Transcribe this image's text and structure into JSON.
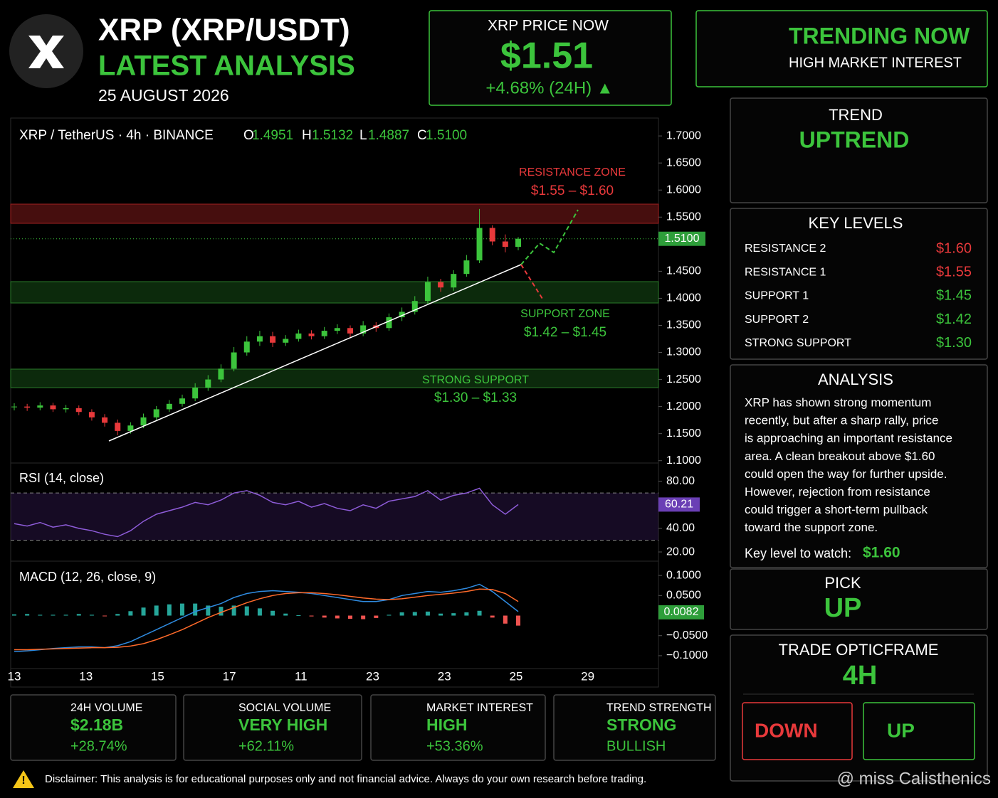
{
  "header": {
    "title": "XRP (XRP/USDT)",
    "subtitle": "LATEST ANALYSIS",
    "date": "25 AUGUST 2026"
  },
  "price": {
    "label": "XRP PRICE NOW",
    "value": "$1.51",
    "change": "+4.68% (24H) ▲"
  },
  "trending": {
    "title": "TRENDING NOW",
    "subtitle": "HIGH MARKET INTEREST"
  },
  "chart_header": {
    "symbol": "XRP / TetherUS · 4h · BINANCE",
    "ohlc": [
      [
        "O",
        "1.4951"
      ],
      [
        "H",
        "1.5132"
      ],
      [
        "L",
        "1.4887"
      ],
      [
        "C",
        "1.5100"
      ]
    ]
  },
  "zones": {
    "resistance": [
      "RESISTANCE ZONE",
      "$1.55 – $1.60"
    ],
    "support": [
      "SUPPORT ZONE",
      "$1.42 – $1.45"
    ],
    "strong": [
      "STRONG SUPPORT",
      "$1.30 – $1.33"
    ]
  },
  "chart_data": {
    "type": "candlestick",
    "x_labels": [
      "13",
      "13",
      "15",
      "17",
      "11",
      "23",
      "23",
      "25",
      "29"
    ],
    "open": [
      1.199,
      1.2,
      1.198,
      1.202,
      1.195,
      1.197,
      1.19,
      1.18,
      1.17,
      1.155,
      1.165,
      1.18,
      1.195,
      1.205,
      1.215,
      1.235,
      1.25,
      1.27,
      1.3,
      1.32,
      1.33,
      1.318,
      1.325,
      1.335,
      1.33,
      1.34,
      1.345,
      1.335,
      1.35,
      1.345,
      1.365,
      1.375,
      1.395,
      1.43,
      1.42,
      1.445,
      1.47,
      1.53,
      1.505,
      1.4951
    ],
    "high": [
      1.206,
      1.205,
      1.208,
      1.207,
      1.203,
      1.202,
      1.195,
      1.186,
      1.176,
      1.171,
      1.187,
      1.201,
      1.212,
      1.222,
      1.243,
      1.258,
      1.278,
      1.31,
      1.33,
      1.34,
      1.338,
      1.332,
      1.342,
      1.341,
      1.347,
      1.352,
      1.35,
      1.358,
      1.356,
      1.372,
      1.383,
      1.404,
      1.44,
      1.436,
      1.452,
      1.48,
      1.565,
      1.535,
      1.518,
      1.5132
    ],
    "low": [
      1.193,
      1.192,
      1.193,
      1.19,
      1.189,
      1.184,
      1.174,
      1.163,
      1.147,
      1.15,
      1.16,
      1.175,
      1.19,
      1.2,
      1.21,
      1.229,
      1.245,
      1.265,
      1.294,
      1.312,
      1.31,
      1.312,
      1.32,
      1.324,
      1.325,
      1.334,
      1.328,
      1.33,
      1.338,
      1.34,
      1.358,
      1.37,
      1.39,
      1.412,
      1.414,
      1.44,
      1.465,
      1.498,
      1.485,
      1.4887
    ],
    "close": [
      1.2,
      1.198,
      1.202,
      1.195,
      1.197,
      1.19,
      1.18,
      1.17,
      1.155,
      1.165,
      1.18,
      1.195,
      1.205,
      1.215,
      1.235,
      1.25,
      1.27,
      1.3,
      1.32,
      1.33,
      1.318,
      1.325,
      1.335,
      1.33,
      1.34,
      1.345,
      1.335,
      1.35,
      1.345,
      1.365,
      1.375,
      1.395,
      1.43,
      1.42,
      1.445,
      1.47,
      1.53,
      1.505,
      1.495,
      1.51
    ],
    "up_color": "#3cc43c",
    "down_color": "#e8393b",
    "ylim": [
      1.097,
      1.733
    ],
    "yticks": [
      {
        "value": 1.7,
        "label": "1.7000"
      },
      {
        "value": 1.65,
        "label": "1.6500"
      },
      {
        "value": 1.6,
        "label": "1.6000"
      },
      {
        "value": 1.55,
        "label": "1.5500"
      },
      {
        "value": 1.45,
        "label": "1.4500"
      },
      {
        "value": 1.4,
        "label": "1.4000"
      },
      {
        "value": 1.35,
        "label": "1.3500"
      },
      {
        "value": 1.3,
        "label": "1.3000"
      },
      {
        "value": 1.25,
        "label": "1.2500"
      },
      {
        "value": 1.2,
        "label": "1.2000"
      },
      {
        "value": 1.15,
        "label": "1.1500"
      },
      {
        "value": 1.1,
        "label": "1.1000"
      }
    ],
    "last_price": 1.51,
    "last_price_label": "1.5100",
    "rsi": {
      "title": "RSI (14, close)",
      "color": "#8e5cd9",
      "ylim": [
        14,
        90
      ],
      "bands": [
        30,
        70
      ],
      "yticks": [
        {
          "value": 80,
          "label": "80.00"
        },
        {
          "value": 40,
          "label": "40.00"
        },
        {
          "value": 20,
          "label": "20.00"
        }
      ],
      "values": [
        44,
        42,
        45,
        41,
        43,
        40,
        38,
        35,
        33,
        38,
        46,
        52,
        55,
        58,
        62,
        60,
        64,
        70,
        72,
        68,
        62,
        60,
        63,
        58,
        61,
        57,
        55,
        60,
        57,
        63,
        65,
        67,
        72,
        64,
        68,
        70,
        74,
        60,
        52,
        60.21
      ]
    },
    "macd": {
      "title": "MACD (12, 26, close, 9)",
      "ylim": [
        -0.132,
        0.125
      ],
      "macd_color": "#2f8be0",
      "signal_color": "#ff6a2a",
      "yticks": [
        {
          "value": 0.1,
          "label": "0.1000"
        },
        {
          "value": 0.05,
          "label": "0.0500"
        },
        {
          "value": -0.05,
          "label": "−0.0500"
        },
        {
          "value": -0.1,
          "label": "−0.1000"
        }
      ],
      "macd": [
        -0.09,
        -0.088,
        -0.085,
        -0.082,
        -0.08,
        -0.078,
        -0.078,
        -0.08,
        -0.075,
        -0.065,
        -0.05,
        -0.035,
        -0.02,
        -0.005,
        0.01,
        0.02,
        0.03,
        0.045,
        0.055,
        0.06,
        0.062,
        0.06,
        0.058,
        0.055,
        0.05,
        0.045,
        0.04,
        0.035,
        0.035,
        0.04,
        0.05,
        0.055,
        0.06,
        0.058,
        0.062,
        0.068,
        0.078,
        0.06,
        0.035,
        0.01
      ],
      "signal": [
        -0.085,
        -0.085,
        -0.084,
        -0.083,
        -0.082,
        -0.081,
        -0.08,
        -0.08,
        -0.079,
        -0.076,
        -0.07,
        -0.06,
        -0.048,
        -0.035,
        -0.02,
        -0.005,
        0.008,
        0.02,
        0.032,
        0.042,
        0.05,
        0.055,
        0.057,
        0.057,
        0.055,
        0.052,
        0.048,
        0.044,
        0.041,
        0.04,
        0.042,
        0.046,
        0.05,
        0.053,
        0.056,
        0.06,
        0.066,
        0.065,
        0.055,
        0.035
      ],
      "histogram": [
        0.003,
        0.004,
        0.002,
        0.002,
        0.002,
        0.004,
        0.002,
        -0.001,
        0.004,
        0.011,
        0.02,
        0.025,
        0.028,
        0.03,
        0.03,
        0.025,
        0.022,
        0.025,
        0.023,
        0.018,
        0.012,
        0.005,
        0.001,
        -0.002,
        -0.005,
        -0.007,
        -0.008,
        -0.009,
        -0.006,
        0.002,
        0.008,
        0.009,
        0.01,
        0.005,
        0.006,
        0.008,
        0.012,
        -0.005,
        -0.02,
        -0.025
      ],
      "last": 0.0082
    }
  },
  "trend": {
    "title": "TREND",
    "value": "UPTREND"
  },
  "key_levels": {
    "title": "KEY LEVELS",
    "rows": [
      [
        "RESISTANCE 2",
        "$1.60"
      ],
      [
        "RESISTANCE 1",
        "$1.55"
      ],
      [
        "SUPPORT 1",
        "$1.45"
      ],
      [
        "SUPPORT 2",
        "$1.42"
      ],
      [
        "STRONG SUPPORT",
        "$1.30"
      ]
    ]
  },
  "analysis": {
    "title": "ANALYSIS",
    "lines": [
      "XRP has shown strong momentum",
      "recently, but after a sharp rally, price",
      "is approaching an important resistance",
      "area. A clean breakout above $1.60",
      "could open the way for further upside.",
      "However, rejection from resistance",
      "could trigger a short-term pullback",
      "toward the support zone."
    ],
    "key_label": "Key level to watch:",
    "key_value": "$1.60"
  },
  "pick": {
    "title": "PICK",
    "value": "UP"
  },
  "trade": {
    "title": "TRADE OPTICFRAME",
    "value": "4H",
    "buttons": [
      "DOWN",
      "UP"
    ]
  },
  "stats": [
    [
      "24H VOLUME",
      "$2.18B",
      "+28.74%"
    ],
    [
      "SOCIAL VOLUME",
      "VERY HIGH",
      "+62.11%"
    ],
    [
      "MARKET INTEREST",
      "HIGH",
      "+53.36%"
    ],
    [
      "TREND STRENGTH",
      "STRONG",
      "BULLISH"
    ]
  ],
  "disclaimer": "Disclaimer: This analysis is for educational purposes only and not financial advice. Always do your own research before trading.",
  "watermark": "@ miss Calisthenics"
}
